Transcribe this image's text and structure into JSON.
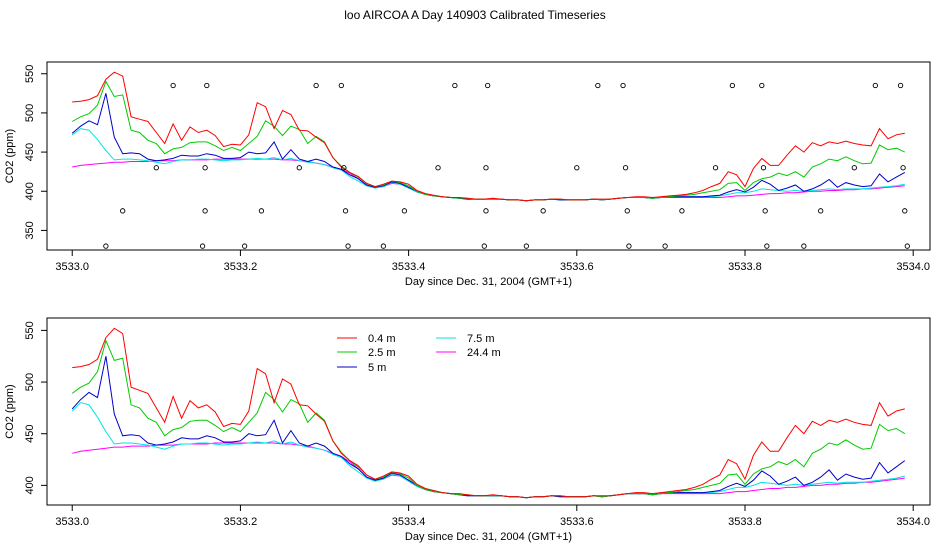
{
  "title": "loo AIRCOA A  Day 140903  Calibrated Timeseries",
  "chart_data": [
    {
      "type": "line",
      "title": "loo AIRCOA A  Day 140903  Calibrated Timeseries",
      "xlabel": "Day since Dec. 31, 2004 (GMT+1)",
      "ylabel": "CO2 (ppm)",
      "xlim": [
        3532.97,
        3534.02
      ],
      "ylim": [
        325,
        565
      ],
      "xticks": [
        "3533.0",
        "3533.2",
        "3533.4",
        "3533.6",
        "3533.8",
        "3534.0"
      ],
      "xtick_values": [
        3533.0,
        3533.2,
        3533.4,
        3533.6,
        3533.8,
        3534.0
      ],
      "yticks": [
        "350",
        "400",
        "450",
        "500",
        "550"
      ],
      "ytick_values": [
        350,
        400,
        450,
        500,
        550
      ],
      "x": [
        3533.0,
        3533.01,
        3533.02,
        3533.03,
        3533.04,
        3533.05,
        3533.06,
        3533.07,
        3533.08,
        3533.09,
        3533.1,
        3533.11,
        3533.12,
        3533.13,
        3533.14,
        3533.15,
        3533.16,
        3533.17,
        3533.18,
        3533.19,
        3533.2,
        3533.21,
        3533.22,
        3533.23,
        3533.24,
        3533.25,
        3533.26,
        3533.27,
        3533.28,
        3533.29,
        3533.3,
        3533.31,
        3533.32,
        3533.33,
        3533.34,
        3533.35,
        3533.36,
        3533.37,
        3533.38,
        3533.39,
        3533.4,
        3533.41,
        3533.42,
        3533.43,
        3533.44,
        3533.45,
        3533.46,
        3533.47,
        3533.48,
        3533.49,
        3533.5,
        3533.51,
        3533.52,
        3533.53,
        3533.54,
        3533.55,
        3533.56,
        3533.57,
        3533.58,
        3533.59,
        3533.6,
        3533.61,
        3533.62,
        3533.63,
        3533.64,
        3533.65,
        3533.66,
        3533.67,
        3533.68,
        3533.69,
        3533.7,
        3533.71,
        3533.72,
        3533.73,
        3533.74,
        3533.75,
        3533.76,
        3533.77,
        3533.78,
        3533.79,
        3533.8,
        3533.81,
        3533.82,
        3533.83,
        3533.84,
        3533.85,
        3533.86,
        3533.87,
        3533.88,
        3533.89,
        3533.9,
        3533.91,
        3533.92,
        3533.93,
        3533.94,
        3533.95,
        3533.96,
        3533.97,
        3533.98,
        3533.99
      ],
      "series": [
        {
          "name": "0.4 m",
          "color": "#ff0000",
          "values": [
            514,
            515,
            517,
            522,
            543,
            552,
            547,
            495,
            492,
            489,
            475,
            461,
            486,
            465,
            482,
            475,
            478,
            471,
            457,
            460,
            459,
            472,
            513,
            508,
            480,
            503,
            498,
            478,
            477,
            469,
            462,
            443,
            431,
            424,
            419,
            410,
            406,
            409,
            413,
            412,
            409,
            401,
            397,
            395,
            393,
            392,
            392,
            391,
            390,
            390,
            391,
            390,
            389,
            389,
            388,
            389,
            389,
            390,
            390,
            389,
            389,
            389,
            390,
            390,
            390,
            391,
            392,
            393,
            393,
            392,
            393,
            394,
            395,
            396,
            398,
            401,
            406,
            410,
            425,
            421,
            406,
            429,
            442,
            433,
            433,
            446,
            458,
            450,
            462,
            458,
            463,
            461,
            464,
            461,
            459,
            458,
            480,
            467,
            472,
            474
          ]
        },
        {
          "name": "2.5 m",
          "color": "#00cc00",
          "values": [
            489,
            495,
            499,
            510,
            540,
            521,
            523,
            478,
            475,
            465,
            461,
            448,
            454,
            456,
            462,
            463,
            463,
            458,
            452,
            456,
            452,
            461,
            470,
            490,
            483,
            471,
            483,
            479,
            461,
            470,
            463,
            443,
            432,
            424,
            418,
            410,
            406,
            408,
            413,
            411,
            407,
            400,
            396,
            394,
            393,
            392,
            391,
            391,
            390,
            390,
            390,
            390,
            389,
            389,
            388,
            389,
            389,
            390,
            390,
            389,
            389,
            389,
            390,
            389,
            390,
            391,
            392,
            392,
            392,
            391,
            392,
            393,
            394,
            395,
            396,
            398,
            400,
            402,
            410,
            411,
            401,
            411,
            416,
            418,
            423,
            420,
            425,
            418,
            431,
            435,
            441,
            439,
            444,
            439,
            435,
            436,
            459,
            453,
            455,
            450
          ]
        },
        {
          "name": "5 m",
          "color": "#0000cc",
          "values": [
            474,
            483,
            490,
            485,
            525,
            469,
            448,
            449,
            448,
            441,
            439,
            440,
            442,
            446,
            445,
            445,
            448,
            446,
            442,
            442,
            443,
            450,
            448,
            449,
            463,
            441,
            453,
            441,
            438,
            441,
            438,
            431,
            428,
            421,
            416,
            408,
            405,
            407,
            412,
            410,
            405,
            400,
            396,
            394,
            393,
            392,
            391,
            390,
            390,
            390,
            390,
            390,
            389,
            389,
            388,
            389,
            389,
            390,
            389,
            389,
            389,
            389,
            390,
            389,
            390,
            391,
            392,
            392,
            392,
            391,
            392,
            393,
            393,
            393,
            393,
            393,
            394,
            395,
            399,
            402,
            399,
            405,
            414,
            409,
            401,
            404,
            408,
            400,
            403,
            408,
            415,
            405,
            411,
            408,
            406,
            407,
            422,
            412,
            418,
            424
          ]
        },
        {
          "name": "7.5 m",
          "color": "#00e5e5",
          "values": [
            472,
            480,
            478,
            466,
            452,
            440,
            441,
            441,
            440,
            439,
            437,
            435,
            438,
            440,
            440,
            441,
            441,
            440,
            439,
            440,
            440,
            441,
            442,
            441,
            443,
            440,
            442,
            439,
            437,
            436,
            434,
            430,
            427,
            419,
            413,
            407,
            404,
            406,
            411,
            409,
            404,
            399,
            396,
            394,
            393,
            392,
            391,
            390,
            390,
            390,
            390,
            390,
            389,
            389,
            388,
            389,
            389,
            390,
            389,
            389,
            389,
            389,
            390,
            389,
            390,
            391,
            392,
            392,
            392,
            391,
            392,
            393,
            393,
            393,
            393,
            393,
            393,
            394,
            396,
            398,
            398,
            400,
            403,
            402,
            401,
            400,
            401,
            400,
            401,
            402,
            403,
            402,
            403,
            403,
            403,
            404,
            405,
            406,
            407,
            409
          ]
        },
        {
          "name": "24.4 m",
          "color": "#ff00ff",
          "values": [
            431,
            433,
            434,
            435,
            436,
            437,
            437,
            438,
            438,
            438,
            439,
            439,
            439,
            440,
            440,
            440,
            440,
            441,
            441,
            441,
            441,
            441,
            441,
            441,
            441,
            440,
            440,
            439,
            438,
            436,
            434,
            431,
            428,
            423,
            416,
            408,
            405,
            406,
            410,
            409,
            404,
            399,
            396,
            394,
            393,
            392,
            391,
            390,
            390,
            390,
            390,
            390,
            389,
            389,
            388,
            389,
            389,
            390,
            389,
            389,
            389,
            389,
            390,
            389,
            390,
            391,
            392,
            392,
            392,
            391,
            392,
            392,
            392,
            392,
            392,
            392,
            392,
            392,
            393,
            394,
            394,
            395,
            396,
            397,
            397,
            398,
            398,
            399,
            400,
            400,
            401,
            401,
            402,
            402,
            403,
            403,
            404,
            405,
            406,
            407
          ]
        }
      ],
      "scatter": {
        "x": [
          3533.04,
          3533.06,
          3533.1,
          3533.12,
          3533.155,
          3533.158,
          3533.158,
          3533.16,
          3533.205,
          3533.225,
          3533.27,
          3533.29,
          3533.32,
          3533.323,
          3533.325,
          3533.328,
          3533.37,
          3533.395,
          3533.435,
          3533.455,
          3533.49,
          3533.492,
          3533.492,
          3533.494,
          3533.54,
          3533.56,
          3533.6,
          3533.625,
          3533.655,
          3533.658,
          3533.66,
          3533.662,
          3533.705,
          3533.725,
          3533.765,
          3533.785,
          3533.82,
          3533.822,
          3533.824,
          3533.826,
          3533.87,
          3533.89,
          3533.93,
          3533.955,
          3533.985,
          3533.988,
          3533.99,
          3533.993
        ],
        "y": [
          330,
          375,
          430,
          535,
          330,
          375,
          430,
          535,
          330,
          375,
          430,
          535,
          535,
          430,
          375,
          330,
          330,
          375,
          430,
          535,
          330,
          375,
          430,
          535,
          330,
          375,
          430,
          535,
          535,
          430,
          375,
          330,
          330,
          375,
          430,
          535,
          535,
          430,
          375,
          330,
          330,
          375,
          430,
          535,
          535,
          430,
          375,
          330
        ]
      }
    },
    {
      "type": "line",
      "xlabel": "Day since Dec. 31, 2004 (GMT+1)",
      "ylabel": "CO2 (ppm)",
      "xlim": [
        3532.97,
        3534.02
      ],
      "ylim": [
        381,
        562
      ],
      "xticks": [
        "3533.0",
        "3533.2",
        "3533.4",
        "3533.6",
        "3533.8",
        "3534.0"
      ],
      "xtick_values": [
        3533.0,
        3533.2,
        3533.4,
        3533.6,
        3533.8,
        3534.0
      ],
      "yticks": [
        "400",
        "450",
        "500",
        "550"
      ],
      "ytick_values": [
        400,
        450,
        500,
        550
      ],
      "legend": {
        "placement": "top-center",
        "entries": [
          {
            "label": "0.4 m",
            "color": "#ff0000"
          },
          {
            "label": "2.5 m",
            "color": "#00cc00"
          },
          {
            "label": "5 m",
            "color": "#0000cc"
          },
          {
            "label": "7.5 m",
            "color": "#00e5e5"
          },
          {
            "label": "24.4 m",
            "color": "#ff00ff"
          }
        ]
      },
      "same_series_as_panel": 0
    }
  ]
}
